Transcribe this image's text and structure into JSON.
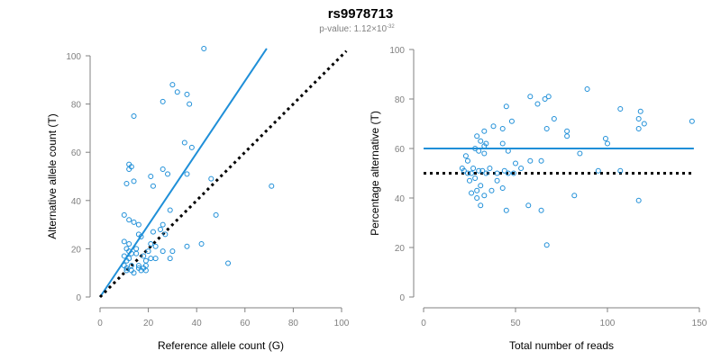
{
  "figure": {
    "title": "rs9978713",
    "subtitle_prefix": "p-value: 1.12×10",
    "subtitle_exponent": "-32"
  },
  "colors": {
    "points": "#1f8fd8",
    "fit_line": "#1f8fd8",
    "reference_line": "#000000",
    "axis": "#808080"
  },
  "chart_data": [
    {
      "type": "scatter",
      "title": "",
      "xlabel": "Reference allele count (G)",
      "ylabel": "Alternative allele count (T)",
      "xlim": [
        0,
        100
      ],
      "ylim": [
        0,
        100
      ],
      "xticks": [
        0,
        20,
        40,
        60,
        80,
        100
      ],
      "yticks": [
        0,
        20,
        40,
        60,
        80,
        100
      ],
      "grid": false,
      "lines": [
        {
          "role": "fit",
          "style": "solid",
          "x": [
            0,
            69
          ],
          "y": [
            0,
            103
          ]
        },
        {
          "role": "reference",
          "style": "dotted",
          "x": [
            0,
            102
          ],
          "y": [
            0,
            102
          ]
        }
      ],
      "points": [
        [
          43,
          103
        ],
        [
          30,
          88
        ],
        [
          32,
          85
        ],
        [
          36,
          84
        ],
        [
          26,
          81
        ],
        [
          37,
          80
        ],
        [
          14,
          75
        ],
        [
          38,
          62
        ],
        [
          35,
          64
        ],
        [
          12,
          55
        ],
        [
          13,
          54
        ],
        [
          12,
          53
        ],
        [
          26,
          53
        ],
        [
          28,
          51
        ],
        [
          36,
          51
        ],
        [
          46,
          49
        ],
        [
          14,
          48
        ],
        [
          11,
          47
        ],
        [
          22,
          46
        ],
        [
          71,
          46
        ],
        [
          21,
          50
        ],
        [
          29,
          36
        ],
        [
          10,
          34
        ],
        [
          48,
          34
        ],
        [
          12,
          32
        ],
        [
          14,
          31
        ],
        [
          16,
          30
        ],
        [
          26,
          30
        ],
        [
          16,
          26
        ],
        [
          17,
          25
        ],
        [
          22,
          27
        ],
        [
          25,
          28
        ],
        [
          27,
          26
        ],
        [
          10,
          23
        ],
        [
          12,
          22
        ],
        [
          11,
          20
        ],
        [
          21,
          22
        ],
        [
          36,
          21
        ],
        [
          42,
          22
        ],
        [
          12,
          19
        ],
        [
          15,
          20
        ],
        [
          20,
          19
        ],
        [
          23,
          21
        ],
        [
          26,
          19
        ],
        [
          30,
          19
        ],
        [
          10,
          17
        ],
        [
          12,
          16
        ],
        [
          13,
          18
        ],
        [
          18,
          17
        ],
        [
          19,
          15
        ],
        [
          21,
          16
        ],
        [
          10,
          13
        ],
        [
          11,
          12
        ],
        [
          13,
          13
        ],
        [
          16,
          13
        ],
        [
          19,
          13
        ],
        [
          23,
          16
        ],
        [
          29,
          16
        ],
        [
          11,
          11
        ],
        [
          13,
          11
        ],
        [
          16,
          12
        ],
        [
          17,
          11
        ],
        [
          18,
          12
        ],
        [
          19,
          11
        ],
        [
          14,
          10
        ],
        [
          53,
          14
        ],
        [
          11,
          15
        ],
        [
          15,
          18
        ]
      ]
    },
    {
      "type": "scatter",
      "title": "",
      "xlabel": "Total number of reads",
      "ylabel": "Percentage alternative (T)",
      "xlim": [
        0,
        150
      ],
      "ylim": [
        0,
        100
      ],
      "xticks": [
        0,
        50,
        100,
        150
      ],
      "yticks": [
        0,
        20,
        40,
        60,
        80,
        100
      ],
      "grid": false,
      "lines": [
        {
          "role": "fit",
          "style": "solid",
          "x": [
            0,
            147
          ],
          "y": [
            60,
            60
          ]
        },
        {
          "role": "reference",
          "style": "dotted",
          "x": [
            0,
            147
          ],
          "y": [
            50,
            50
          ]
        }
      ],
      "points": [
        [
          58,
          81
        ],
        [
          66,
          80
        ],
        [
          68,
          81
        ],
        [
          89,
          84
        ],
        [
          45,
          77
        ],
        [
          62,
          78
        ],
        [
          107,
          76
        ],
        [
          118,
          75
        ],
        [
          117,
          72
        ],
        [
          146,
          71
        ],
        [
          120,
          70
        ],
        [
          71,
          72
        ],
        [
          38,
          69
        ],
        [
          43,
          68
        ],
        [
          48,
          71
        ],
        [
          67,
          68
        ],
        [
          117,
          68
        ],
        [
          78,
          67
        ],
        [
          33,
          67
        ],
        [
          78,
          65
        ],
        [
          99,
          64
        ],
        [
          100,
          62
        ],
        [
          29,
          65
        ],
        [
          31,
          63
        ],
        [
          33,
          61
        ],
        [
          34,
          62
        ],
        [
          43,
          62
        ],
        [
          28,
          60
        ],
        [
          30,
          59
        ],
        [
          33,
          58
        ],
        [
          46,
          59
        ],
        [
          23,
          57
        ],
        [
          24,
          55
        ],
        [
          21,
          52
        ],
        [
          22,
          51
        ],
        [
          27,
          52
        ],
        [
          24,
          50
        ],
        [
          26,
          50
        ],
        [
          30,
          51
        ],
        [
          32,
          51
        ],
        [
          34,
          50
        ],
        [
          40,
          50
        ],
        [
          44,
          51
        ],
        [
          46,
          50
        ],
        [
          50,
          54
        ],
        [
          53,
          52
        ],
        [
          58,
          55
        ],
        [
          64,
          55
        ],
        [
          85,
          58
        ],
        [
          95,
          51
        ],
        [
          107,
          51
        ],
        [
          25,
          47
        ],
        [
          28,
          48
        ],
        [
          31,
          45
        ],
        [
          26,
          42
        ],
        [
          29,
          43
        ],
        [
          33,
          41
        ],
        [
          37,
          43
        ],
        [
          43,
          44
        ],
        [
          49,
          50
        ],
        [
          29,
          40
        ],
        [
          31,
          37
        ],
        [
          45,
          35
        ],
        [
          57,
          37
        ],
        [
          64,
          35
        ],
        [
          82,
          41
        ],
        [
          117,
          39
        ],
        [
          67,
          21
        ],
        [
          40,
          47
        ],
        [
          36,
          52
        ]
      ]
    }
  ]
}
